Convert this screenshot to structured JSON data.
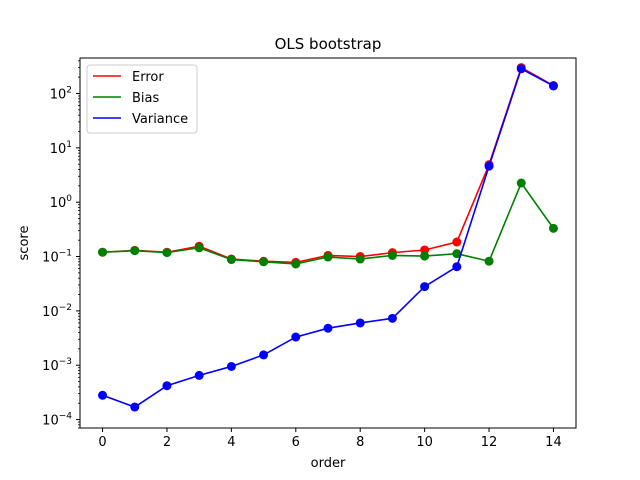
{
  "chart_data": {
    "type": "line",
    "title": "OLS bootstrap",
    "xlabel": "order",
    "ylabel": "score",
    "yscale": "log",
    "xlim": [
      -0.7,
      14.7
    ],
    "ylim": [
      7e-05,
      450
    ],
    "grid": false,
    "legend_position": "top-left",
    "x": [
      0,
      1,
      2,
      3,
      4,
      5,
      6,
      7,
      8,
      9,
      10,
      11,
      12,
      13,
      14
    ],
    "x_ticks": [
      0,
      2,
      4,
      6,
      8,
      10,
      12,
      14
    ],
    "x_tick_labels": [
      "0",
      "2",
      "4",
      "6",
      "8",
      "10",
      "12",
      "14"
    ],
    "y_ticks": [
      0.0001,
      0.001,
      0.01,
      0.1,
      1,
      10,
      100
    ],
    "y_tick_labels": [
      {
        "base": "10",
        "exp": "−4"
      },
      {
        "base": "10",
        "exp": "−3"
      },
      {
        "base": "10",
        "exp": "−2"
      },
      {
        "base": "10",
        "exp": "−1"
      },
      {
        "base": "10",
        "exp": "0"
      },
      {
        "base": "10",
        "exp": "1"
      },
      {
        "base": "10",
        "exp": "2"
      }
    ],
    "series": [
      {
        "name": "Error",
        "color": "#ff0000",
        "values": [
          0.12,
          0.13,
          0.12,
          0.155,
          0.09,
          0.082,
          0.078,
          0.105,
          0.1,
          0.118,
          0.132,
          0.185,
          4.9,
          300,
          140
        ]
      },
      {
        "name": "Bias",
        "color": "#008000",
        "values": [
          0.12,
          0.128,
          0.118,
          0.145,
          0.088,
          0.08,
          0.073,
          0.098,
          0.09,
          0.105,
          0.102,
          0.113,
          0.082,
          2.25,
          0.33
        ]
      },
      {
        "name": "Variance",
        "color": "#0000ff",
        "values": [
          0.00028,
          0.00017,
          0.00042,
          0.00065,
          0.00095,
          0.00155,
          0.0033,
          0.0048,
          0.006,
          0.0073,
          0.028,
          0.065,
          4.6,
          285,
          138
        ]
      }
    ]
  }
}
